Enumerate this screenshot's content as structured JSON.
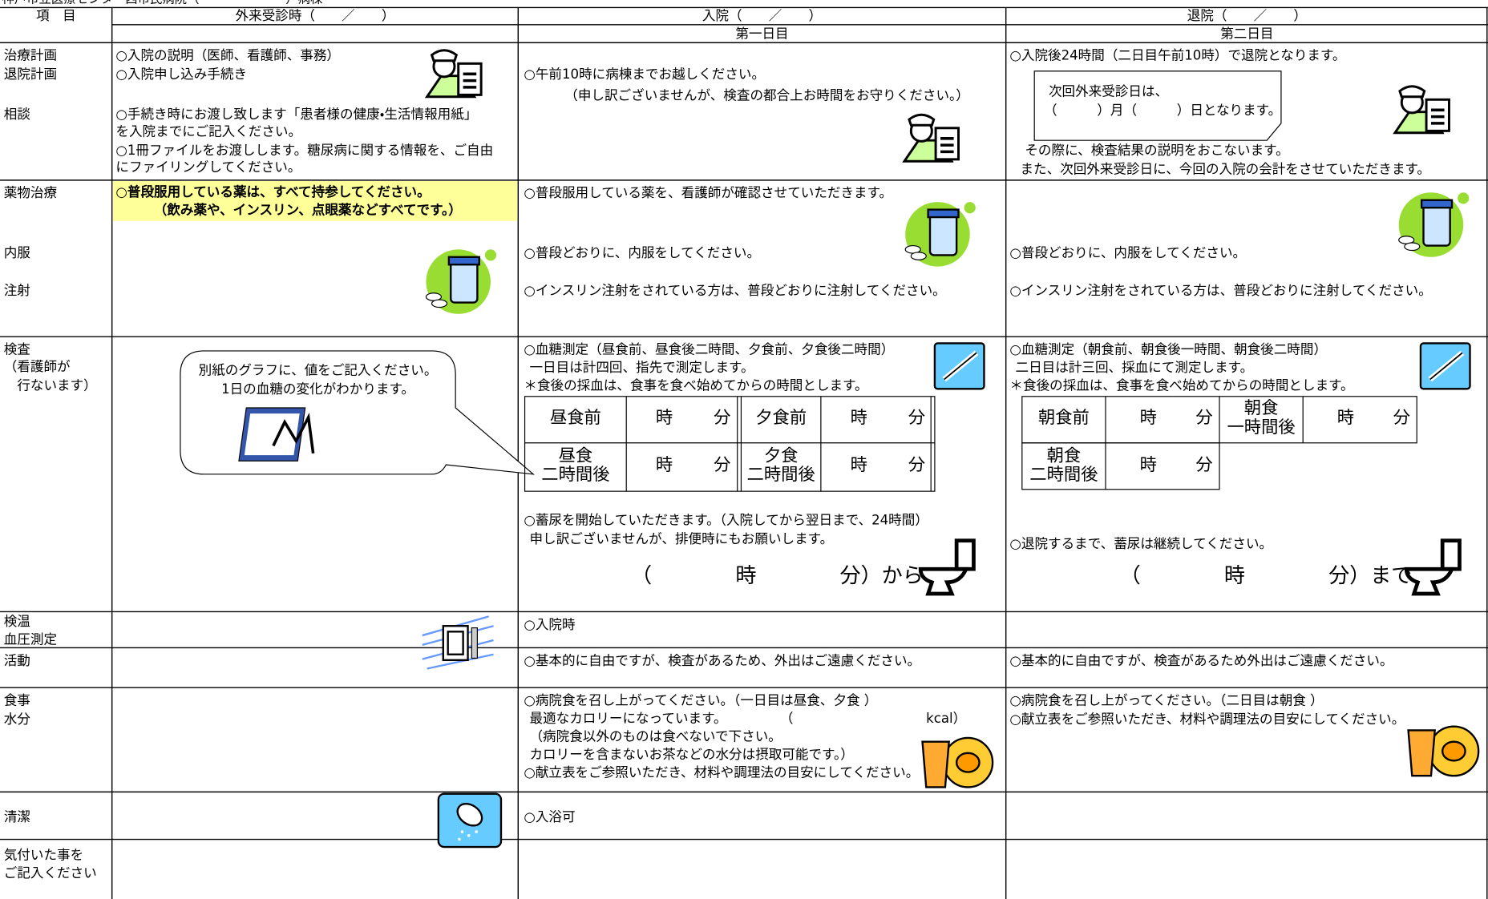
{
  "header": {
    "title": "神戸市立医療センター西市民病院（　　　　　　　）病棟",
    "item": "項　目",
    "outpatient": "外来受診時（　　／　　）",
    "admission": "入院（　　／　　）",
    "discharge": "退院（　　／　　）",
    "day1": "第一日目",
    "day2": "第二日目"
  },
  "rows": [
    {
      "label": [
        "治療計画",
        "退院計画",
        "相談"
      ],
      "out": [
        "○入院の説明（医師、看護師、事務）",
        "○入院申し込み手続き",
        "○手続き時にお渡し致します「患者様の健康・生活情報用紙」",
        "を入院までにご記入ください。",
        "○1冊ファイルをお渡しします。糖尿病に関する情報を、ご自由",
        "にファイリングしてください。"
      ],
      "adm": [
        "○午前10時に病棟までお越しください。",
        "（申し訳ございませんが、検査の都合上お時間をお守りください。）"
      ],
      "dis": [
        "○入院後24時間（二日目午前10時）で退院となります。",
        "次回外来受診日は、",
        "（　　　）月（　　　）日となります。",
        "その際に、検査結果の説明をおこないます。",
        "また、次回外来受診日に、今回の入院の会計をさせていただきます。"
      ]
    },
    {
      "label": [
        "薬物治療",
        "内服",
        "注射"
      ],
      "out": [
        "○普段服用している薬は、すべて持参してください。",
        "（飲み薬や、インスリン、点眼薬などすべてです。）"
      ],
      "adm": [
        "○普段服用している薬を、看護師が確認させていただきます。",
        "○普段どおりに、内服をしてください。",
        "○インスリン注射をされている方は、普段どおりに注射してください。"
      ],
      "dis": [
        "○普段どおりに、内服をしてください。",
        "○インスリン注射をされている方は、普段どおりに注射してください。"
      ]
    },
    {
      "label": [
        "検査",
        "（看護師が",
        "行ないます）"
      ],
      "callout": [
        "別紙のグラフに、値をご記入ください。",
        "1日の血糖の変化がわかります。"
      ],
      "adm": {
        "lines": [
          "○血糖測定（昼食前、昼食後二時間、夕食前、夕食後二時間）",
          "一日目は計四回、指先で測定します。",
          "＊食後の採血は、食事を食べ始めてからの時間とします。"
        ],
        "table": [
          [
            "昼食前",
            "時",
            "分",
            "夕食前",
            "時",
            "分"
          ],
          [
            [
              "昼食",
              "二時間後"
            ],
            "時",
            "分",
            [
              "夕食",
              "二時間後"
            ],
            "時",
            "分"
          ]
        ],
        "urine": [
          "○蓄尿を開始していただきます。（入院してから翌日まで、24時間）",
          "申し訳ございませんが、排便時にもお願いします。"
        ],
        "time": "（　　　　時　　　　分）から"
      },
      "dis": {
        "lines": [
          "○血糖測定（朝食前、朝食後一時間、朝食後二時間）",
          "二日目は計三回、採血にて測定します。",
          "＊食後の採血は、食事を食べ始めてからの時間とします。"
        ],
        "table": [
          [
            "朝食前",
            "時",
            "分",
            [
              "朝食",
              "一時間後"
            ],
            "時",
            "分"
          ],
          [
            [
              "朝食",
              "二時間後"
            ],
            "時",
            "分"
          ]
        ],
        "urine": [
          "○退院するまで、蓄尿は継続してください。"
        ],
        "time": "（　　　　時　　　　分）まで"
      }
    },
    {
      "label": [
        "検温",
        "血圧測定"
      ],
      "adm": [
        "○入院時"
      ]
    },
    {
      "label": [
        "活動"
      ],
      "adm": [
        "○基本的に自由ですが、検査があるため、外出はご遠慮ください。"
      ],
      "dis": [
        "○基本的に自由ですが、検査があるため外出はご遠慮ください。"
      ]
    },
    {
      "label": [
        "食事",
        "水分"
      ],
      "adm": [
        "○病院食を召し上がってください。（一日目は昼食、夕食 ）",
        "最適なカロリーになっています。　　　　　（　　　　　　　　　　kcal）",
        "（病院食以外のものは食べないで下さい。",
        "カロリーを含まないお茶などの水分は摂取可能です。）",
        "○献立表をご参照いただき、材料や調理法の目安にしてください。"
      ],
      "dis": [
        "○病院食を召し上がってください。（二日目は朝食 ）",
        "○献立表をご参照いただき、材料や調理法の目安にしてください。"
      ]
    },
    {
      "label": [
        "清潔"
      ],
      "adm": [
        "○入浴可"
      ]
    },
    {
      "label": [
        "気付いた事を",
        "ご記入ください"
      ]
    }
  ]
}
